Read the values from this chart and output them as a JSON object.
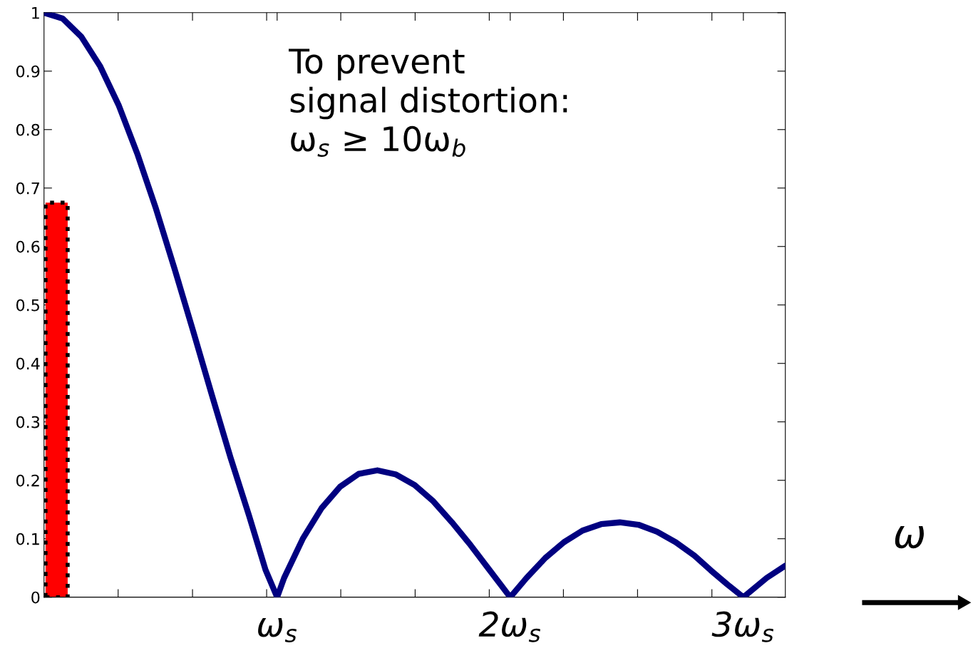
{
  "chart_data": {
    "type": "line",
    "xlabel": "ω",
    "annotations": [
      "To prevent\nsignal distortion:\nω$_{s}$ ≥ 10ω$_{b}$"
    ],
    "xlim": [
      0,
      3.18
    ],
    "ylim": [
      0,
      1
    ],
    "xticks": [
      {
        "value": 0.318,
        "label": null
      },
      {
        "value": 0.637,
        "label": null
      },
      {
        "value": 0.955,
        "label": null
      },
      {
        "value": 1,
        "label": "ω$_{s}$"
      },
      {
        "value": 1.273,
        "label": null
      },
      {
        "value": 1.592,
        "label": null
      },
      {
        "value": 1.91,
        "label": null
      },
      {
        "value": 2,
        "label": "2ω$_{s}$"
      },
      {
        "value": 2.228,
        "label": null
      },
      {
        "value": 2.546,
        "label": null
      },
      {
        "value": 2.865,
        "label": null
      },
      {
        "value": 3,
        "label": "3ω$_{s}$"
      }
    ],
    "yticks": [
      0,
      0.1,
      0.2,
      0.3,
      0.4,
      0.5,
      0.6,
      0.7,
      0.8,
      0.9,
      1
    ],
    "grid": false,
    "legend": false,
    "marker": "none",
    "line_style": "solid",
    "series": [
      {
        "type": "bar",
        "color": "#ff0000",
        "x": [
          0.054
        ],
        "values": [
          0.675
        ]
      },
      {
        "color": "#000080",
        "x": [
          0,
          0.08,
          0.16,
          0.24,
          0.32,
          0.4,
          0.48,
          0.56,
          0.64,
          0.72,
          0.8,
          0.88,
          0.95,
          1,
          1.03,
          1.11,
          1.19,
          1.27,
          1.35,
          1.43,
          1.51,
          1.59,
          1.67,
          1.75,
          1.83,
          1.91,
          2,
          2.07,
          2.15,
          2.23,
          2.31,
          2.39,
          2.47,
          2.55,
          2.63,
          2.71,
          2.79,
          2.86,
          2.94,
          3,
          3.1,
          3.18
        ],
        "values": [
          1,
          0.99,
          0.959,
          0.909,
          0.842,
          0.759,
          0.665,
          0.562,
          0.455,
          0.346,
          0.239,
          0.139,
          0.047,
          0,
          0.033,
          0.1,
          0.152,
          0.189,
          0.211,
          0.217,
          0.21,
          0.192,
          0.164,
          0.128,
          0.089,
          0.047,
          0,
          0.033,
          0.067,
          0.094,
          0.114,
          0.125,
          0.128,
          0.124,
          0.112,
          0.094,
          0.071,
          0.046,
          0.019,
          0,
          0.033,
          0.054
        ]
      }
    ]
  }
}
